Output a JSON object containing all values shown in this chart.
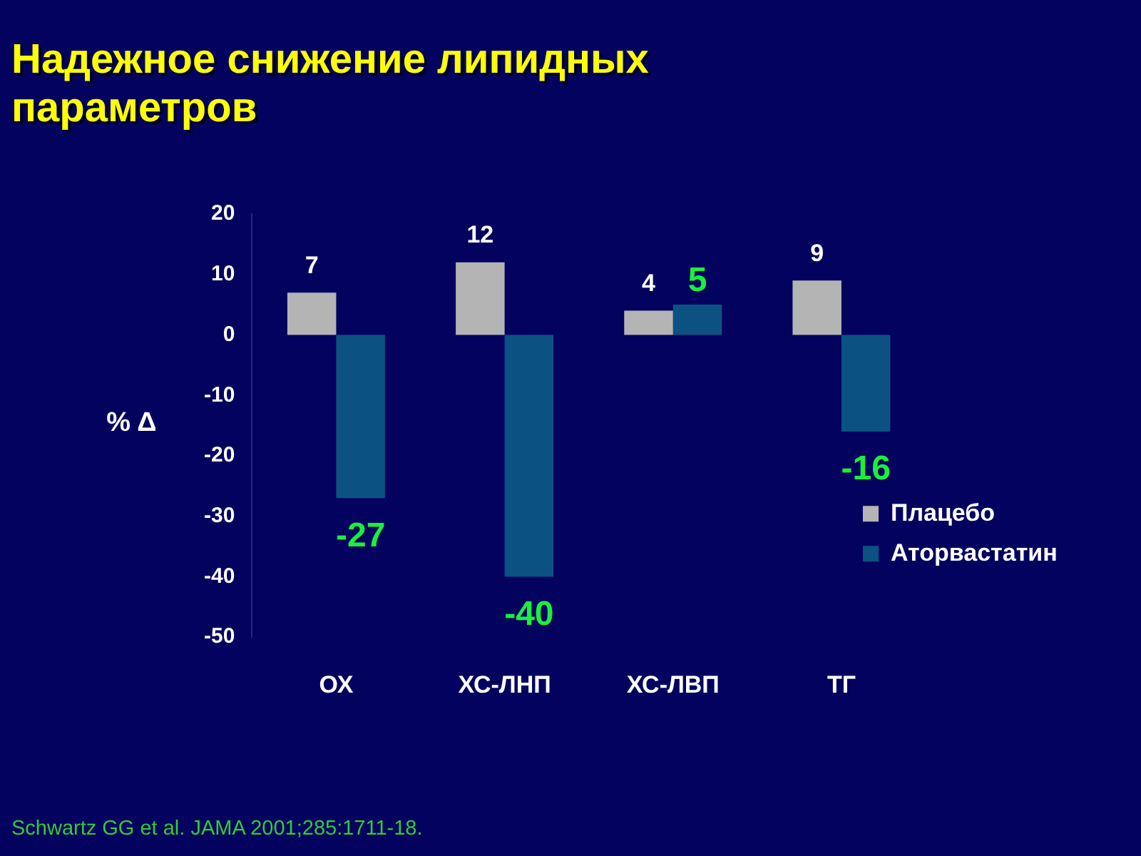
{
  "chart_data": {
    "type": "bar",
    "title": "Надежное снижение липидных параметров",
    "ylabel": "% Δ",
    "categories": [
      "ОХ",
      "ХС-ЛНП",
      "ХС-ЛВП",
      "ТГ"
    ],
    "series": [
      {
        "name": "Плацебо",
        "color": "#b4b4b4",
        "values": [
          7,
          12,
          4,
          9
        ]
      },
      {
        "name": "Аторвастатин",
        "color": "#0b5282",
        "values": [
          -27,
          -40,
          5,
          -16
        ]
      }
    ],
    "ylim": [
      -50,
      20
    ],
    "yticks": [
      -50,
      -40,
      -30,
      -20,
      -10,
      0,
      10,
      20
    ],
    "grid": false,
    "legend": "bottom right",
    "data_labels": true,
    "annotations": [
      "Schwartz GG et al. JAMA 2001;285:1711-18."
    ]
  }
}
